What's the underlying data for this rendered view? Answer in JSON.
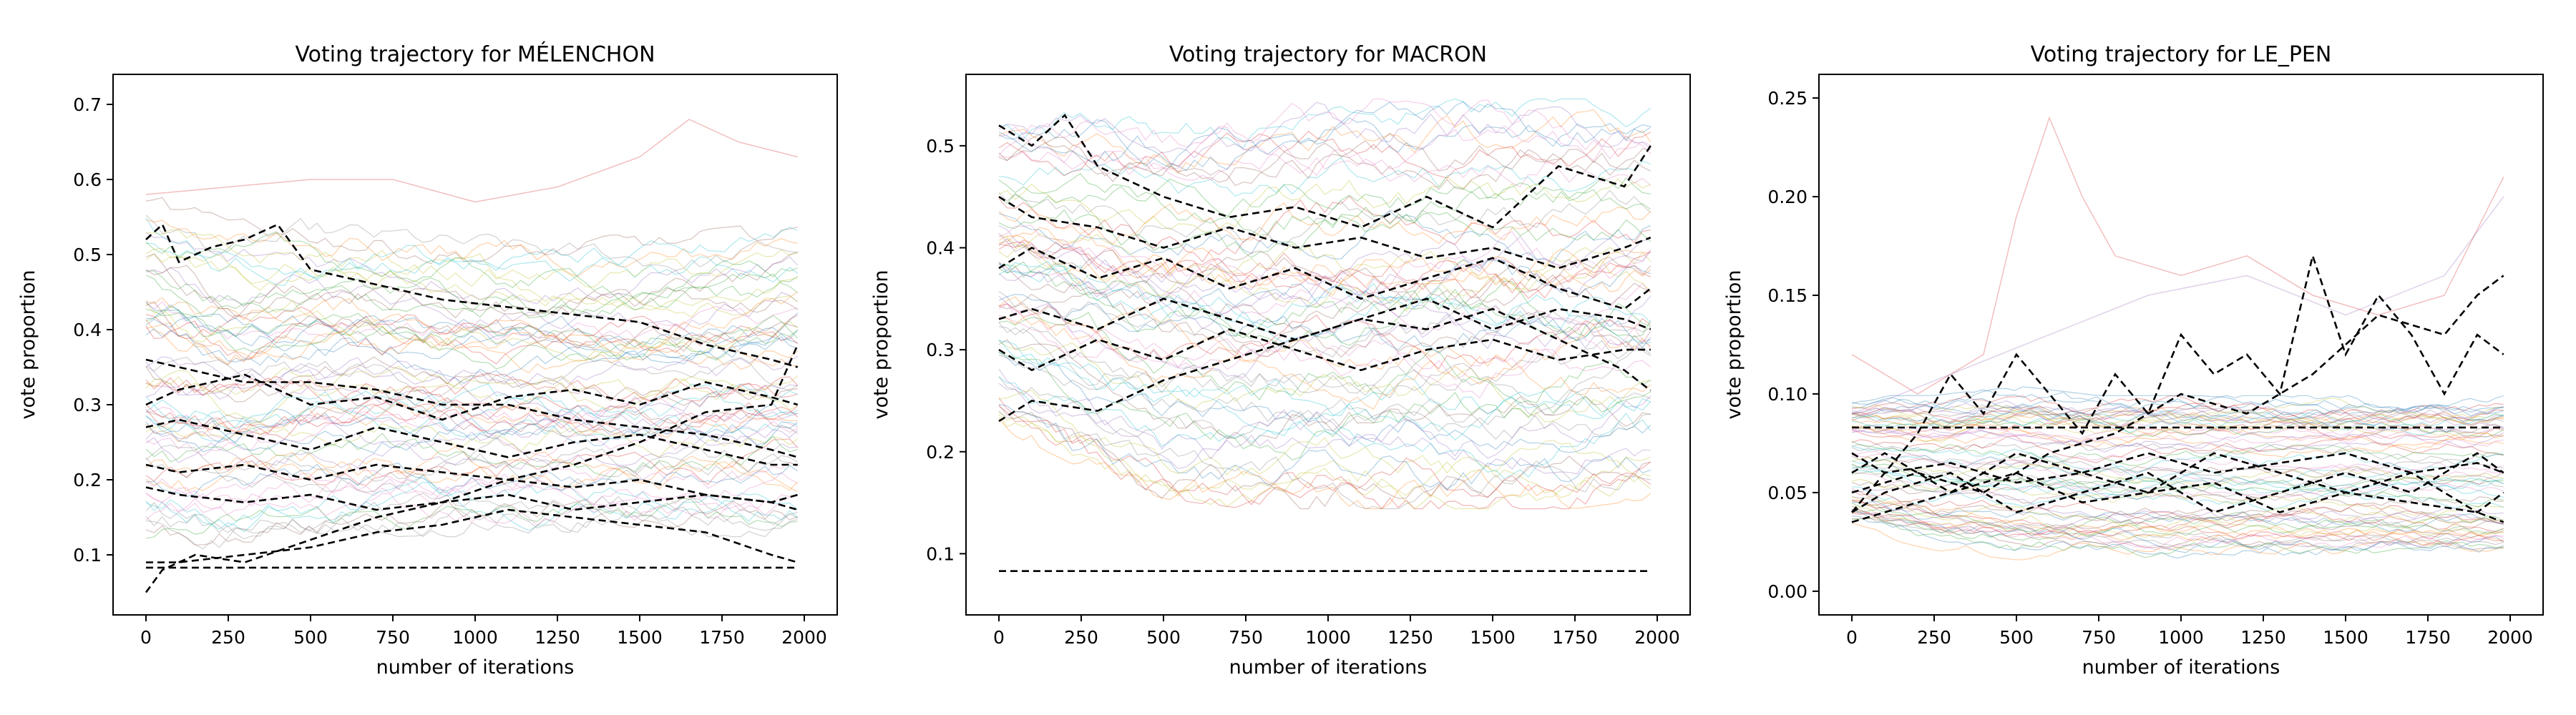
{
  "figure": {
    "background": "#ffffff",
    "trajectory_colors": [
      "#1f77b4",
      "#ff7f0e",
      "#2ca02c",
      "#d62728",
      "#9467bd",
      "#8c564b",
      "#e377c2",
      "#7f7f7f",
      "#bcbd22",
      "#17becf"
    ],
    "highlight_color": "#000000"
  },
  "chart_data": [
    {
      "type": "line",
      "title": "Voting trajectory for MÉLENCHON",
      "xlabel": "number of iterations",
      "ylabel": "vote proportion",
      "xlim": [
        -100,
        2100
      ],
      "ylim": [
        0.02,
        0.74
      ],
      "xticks": [
        0,
        250,
        500,
        750,
        1000,
        1250,
        1500,
        1750,
        2000
      ],
      "yticks": [
        0.1,
        0.2,
        0.3,
        0.4,
        0.5,
        0.6,
        0.7
      ],
      "ytick_labels": [
        "0.1",
        "0.2",
        "0.3",
        "0.4",
        "0.5",
        "0.6",
        "0.7"
      ],
      "background_band": {
        "x": [
          0,
          250,
          500,
          750,
          1000,
          1250,
          1500,
          1750,
          1980
        ],
        "low": [
          0.1,
          0.1,
          0.11,
          0.12,
          0.12,
          0.12,
          0.12,
          0.12,
          0.12
        ],
        "high": [
          0.6,
          0.55,
          0.56,
          0.55,
          0.54,
          0.53,
          0.53,
          0.54,
          0.55
        ]
      },
      "outlier_series": [
        {
          "x": [
            0,
            250,
            500,
            750,
            1000,
            1250,
            1500,
            1650,
            1800,
            1980
          ],
          "y": [
            0.58,
            0.59,
            0.6,
            0.6,
            0.57,
            0.59,
            0.63,
            0.68,
            0.65,
            0.63
          ]
        }
      ],
      "highlight_series": [
        {
          "x": [
            0,
            50,
            100,
            200,
            300,
            400,
            500,
            700,
            900,
            1100,
            1300,
            1500,
            1700,
            1900,
            1980
          ],
          "y": [
            0.52,
            0.54,
            0.49,
            0.51,
            0.52,
            0.54,
            0.48,
            0.46,
            0.44,
            0.43,
            0.42,
            0.41,
            0.38,
            0.36,
            0.35
          ]
        },
        {
          "x": [
            0,
            100,
            300,
            500,
            700,
            900,
            1100,
            1300,
            1500,
            1700,
            1900,
            1980
          ],
          "y": [
            0.36,
            0.35,
            0.33,
            0.33,
            0.32,
            0.3,
            0.3,
            0.28,
            0.27,
            0.26,
            0.24,
            0.23
          ]
        },
        {
          "x": [
            0,
            100,
            300,
            500,
            700,
            900,
            1100,
            1300,
            1500,
            1700,
            1900,
            1980
          ],
          "y": [
            0.3,
            0.32,
            0.34,
            0.3,
            0.31,
            0.28,
            0.31,
            0.32,
            0.3,
            0.33,
            0.31,
            0.3
          ]
        },
        {
          "x": [
            0,
            100,
            300,
            500,
            700,
            900,
            1100,
            1300,
            1500,
            1700,
            1900,
            1980
          ],
          "y": [
            0.27,
            0.28,
            0.26,
            0.24,
            0.27,
            0.25,
            0.23,
            0.25,
            0.26,
            0.24,
            0.22,
            0.22
          ]
        },
        {
          "x": [
            0,
            100,
            300,
            500,
            700,
            900,
            1100,
            1300,
            1500,
            1700,
            1900,
            1980
          ],
          "y": [
            0.22,
            0.21,
            0.22,
            0.2,
            0.22,
            0.21,
            0.2,
            0.19,
            0.2,
            0.18,
            0.17,
            0.16
          ]
        },
        {
          "x": [
            0,
            100,
            300,
            500,
            700,
            900,
            1100,
            1300,
            1500,
            1700,
            1900,
            1980
          ],
          "y": [
            0.19,
            0.18,
            0.17,
            0.18,
            0.16,
            0.17,
            0.18,
            0.16,
            0.17,
            0.18,
            0.17,
            0.18
          ]
        },
        {
          "x": [
            0,
            50,
            150,
            300,
            500,
            700,
            900,
            1100,
            1300,
            1500,
            1700,
            1900,
            1980
          ],
          "y": [
            0.05,
            0.08,
            0.1,
            0.09,
            0.12,
            0.15,
            0.17,
            0.2,
            0.22,
            0.25,
            0.29,
            0.3,
            0.38
          ]
        },
        {
          "x": [
            0,
            100,
            300,
            500,
            700,
            900,
            1100,
            1300,
            1500,
            1700,
            1900,
            1980
          ],
          "y": [
            0.09,
            0.09,
            0.1,
            0.11,
            0.13,
            0.14,
            0.16,
            0.15,
            0.14,
            0.13,
            0.1,
            0.09
          ]
        },
        {
          "x": [
            0,
            1980
          ],
          "y": [
            0.083,
            0.083
          ]
        }
      ]
    },
    {
      "type": "line",
      "title": "Voting trajectory for MACRON",
      "xlabel": "number of iterations",
      "ylabel": "vote proportion",
      "xlim": [
        -100,
        2100
      ],
      "ylim": [
        0.04,
        0.57
      ],
      "xticks": [
        0,
        250,
        500,
        750,
        1000,
        1250,
        1500,
        1750,
        2000
      ],
      "yticks": [
        0.1,
        0.2,
        0.3,
        0.4,
        0.5
      ],
      "ytick_labels": [
        "0.1",
        "0.2",
        "0.3",
        "0.4",
        "0.5"
      ],
      "background_band": {
        "x": [
          0,
          250,
          500,
          750,
          1000,
          1250,
          1500,
          1750,
          1980
        ],
        "low": [
          0.22,
          0.18,
          0.15,
          0.14,
          0.14,
          0.14,
          0.14,
          0.14,
          0.15
        ],
        "high": [
          0.54,
          0.55,
          0.54,
          0.54,
          0.55,
          0.55,
          0.55,
          0.55,
          0.55
        ]
      },
      "outlier_series": [],
      "highlight_series": [
        {
          "x": [
            0,
            100,
            200,
            300,
            500,
            700,
            900,
            1100,
            1300,
            1500,
            1700,
            1900,
            1980
          ],
          "y": [
            0.52,
            0.5,
            0.53,
            0.48,
            0.45,
            0.43,
            0.44,
            0.42,
            0.45,
            0.42,
            0.48,
            0.46,
            0.5
          ]
        },
        {
          "x": [
            0,
            100,
            300,
            500,
            700,
            900,
            1100,
            1300,
            1500,
            1700,
            1900,
            1980
          ],
          "y": [
            0.45,
            0.43,
            0.42,
            0.4,
            0.42,
            0.4,
            0.41,
            0.39,
            0.4,
            0.38,
            0.4,
            0.41
          ]
        },
        {
          "x": [
            0,
            100,
            300,
            500,
            700,
            900,
            1100,
            1300,
            1500,
            1700,
            1900,
            1980
          ],
          "y": [
            0.38,
            0.4,
            0.37,
            0.39,
            0.36,
            0.38,
            0.35,
            0.37,
            0.39,
            0.36,
            0.34,
            0.36
          ]
        },
        {
          "x": [
            0,
            100,
            300,
            500,
            700,
            900,
            1100,
            1300,
            1500,
            1700,
            1900,
            1980
          ],
          "y": [
            0.33,
            0.34,
            0.32,
            0.35,
            0.33,
            0.31,
            0.33,
            0.35,
            0.32,
            0.34,
            0.33,
            0.32
          ]
        },
        {
          "x": [
            0,
            100,
            300,
            500,
            700,
            900,
            1100,
            1300,
            1500,
            1700,
            1900,
            1980
          ],
          "y": [
            0.3,
            0.28,
            0.31,
            0.29,
            0.32,
            0.3,
            0.28,
            0.3,
            0.31,
            0.29,
            0.3,
            0.3
          ]
        },
        {
          "x": [
            0,
            100,
            300,
            500,
            700,
            900,
            1100,
            1300,
            1500,
            1700,
            1900,
            1980
          ],
          "y": [
            0.23,
            0.25,
            0.24,
            0.27,
            0.29,
            0.31,
            0.33,
            0.32,
            0.34,
            0.31,
            0.28,
            0.26
          ]
        },
        {
          "x": [
            0,
            1980
          ],
          "y": [
            0.083,
            0.083
          ]
        }
      ]
    },
    {
      "type": "line",
      "title": "Voting trajectory for LE_PEN",
      "xlabel": "number of iterations",
      "ylabel": "vote proportion",
      "xlim": [
        -100,
        2100
      ],
      "ylim": [
        -0.012,
        0.262
      ],
      "xticks": [
        0,
        250,
        500,
        750,
        1000,
        1250,
        1500,
        1750,
        2000
      ],
      "yticks": [
        0.0,
        0.05,
        0.1,
        0.15,
        0.2,
        0.25
      ],
      "ytick_labels": [
        "0.00",
        "0.05",
        "0.10",
        "0.15",
        "0.20",
        "0.25"
      ],
      "background_band": {
        "x": [
          0,
          250,
          500,
          750,
          1000,
          1250,
          1500,
          1750,
          1980
        ],
        "low": [
          0.03,
          0.02,
          0.015,
          0.015,
          0.015,
          0.015,
          0.015,
          0.015,
          0.015
        ],
        "high": [
          0.1,
          0.1,
          0.105,
          0.1,
          0.1,
          0.1,
          0.1,
          0.1,
          0.1
        ]
      },
      "outlier_series": [
        {
          "x": [
            0,
            200,
            400,
            500,
            600,
            700,
            800,
            1000,
            1200,
            1400,
            1600,
            1800,
            1980
          ],
          "y": [
            0.12,
            0.1,
            0.12,
            0.19,
            0.24,
            0.2,
            0.17,
            0.16,
            0.17,
            0.15,
            0.14,
            0.15,
            0.21
          ]
        },
        {
          "x": [
            0,
            300,
            600,
            900,
            1200,
            1500,
            1800,
            1980
          ],
          "y": [
            0.09,
            0.11,
            0.13,
            0.15,
            0.16,
            0.14,
            0.16,
            0.2
          ]
        }
      ],
      "highlight_series": [
        {
          "x": [
            0,
            100,
            200,
            300,
            400,
            500,
            600,
            700,
            800,
            900,
            1000,
            1100,
            1200,
            1300,
            1400,
            1500,
            1600,
            1700,
            1800,
            1900,
            1980
          ],
          "y": [
            0.04,
            0.06,
            0.08,
            0.11,
            0.09,
            0.12,
            0.1,
            0.08,
            0.11,
            0.09,
            0.13,
            0.11,
            0.12,
            0.1,
            0.17,
            0.12,
            0.15,
            0.13,
            0.1,
            0.13,
            0.12
          ]
        },
        {
          "x": [
            0,
            200,
            400,
            600,
            800,
            1000,
            1200,
            1400,
            1600,
            1800,
            1900,
            1980
          ],
          "y": [
            0.05,
            0.06,
            0.05,
            0.07,
            0.08,
            0.1,
            0.09,
            0.11,
            0.14,
            0.13,
            0.15,
            0.16
          ]
        },
        {
          "x": [
            0,
            100,
            300,
            500,
            700,
            900,
            1100,
            1300,
            1500,
            1700,
            1900,
            1980
          ],
          "y": [
            0.06,
            0.07,
            0.05,
            0.07,
            0.06,
            0.05,
            0.07,
            0.06,
            0.05,
            0.06,
            0.04,
            0.05
          ]
        },
        {
          "x": [
            0,
            100,
            300,
            500,
            700,
            900,
            1100,
            1300,
            1500,
            1700,
            1900,
            1980
          ],
          "y": [
            0.04,
            0.05,
            0.06,
            0.04,
            0.05,
            0.06,
            0.04,
            0.05,
            0.06,
            0.05,
            0.07,
            0.06
          ]
        },
        {
          "x": [
            0,
            100,
            300,
            500,
            700,
            900,
            1100,
            1300,
            1500,
            1700,
            1900,
            1980
          ],
          "y": [
            0.035,
            0.04,
            0.05,
            0.06,
            0.045,
            0.05,
            0.055,
            0.04,
            0.05,
            0.045,
            0.04,
            0.035
          ]
        },
        {
          "x": [
            0,
            100,
            300,
            500,
            700,
            900,
            1100,
            1300,
            1500,
            1700,
            1900,
            1980
          ],
          "y": [
            0.07,
            0.06,
            0.065,
            0.055,
            0.06,
            0.07,
            0.06,
            0.065,
            0.07,
            0.06,
            0.065,
            0.06
          ]
        },
        {
          "x": [
            0,
            1980
          ],
          "y": [
            0.083,
            0.083
          ]
        }
      ]
    }
  ]
}
